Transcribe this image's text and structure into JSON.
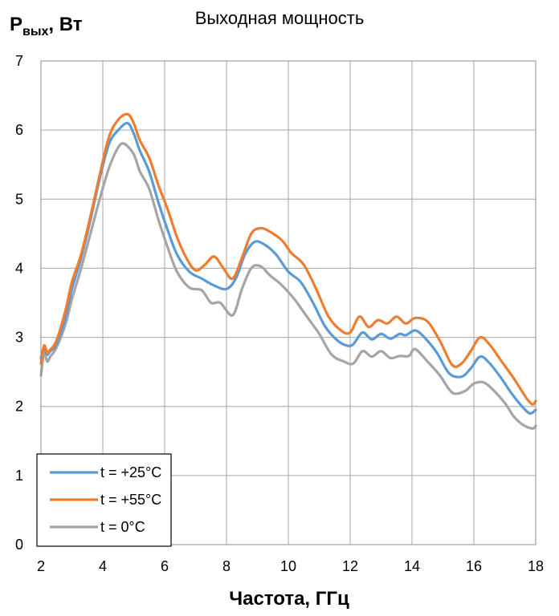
{
  "chart_data": {
    "type": "line",
    "title": "Выходная мощность",
    "ylabel": "P",
    "ylabel_sub": "вых",
    "ylabel_unit": ", Вт",
    "xlabel": "Частота, ГГц",
    "xlim": [
      2,
      18
    ],
    "ylim": [
      0,
      7
    ],
    "x_ticks": [
      2,
      4,
      6,
      8,
      10,
      12,
      14,
      16,
      18
    ],
    "y_ticks": [
      0,
      1,
      2,
      3,
      4,
      5,
      6,
      7
    ],
    "grid": true,
    "legend_position": "bottom-left",
    "series": [
      {
        "name": "t = +25°C",
        "color": "#5b9bd5",
        "points": [
          [
            2.0,
            2.7
          ],
          [
            2.1,
            2.85
          ],
          [
            2.2,
            2.75
          ],
          [
            2.3,
            2.8
          ],
          [
            2.5,
            2.9
          ],
          [
            2.8,
            3.3
          ],
          [
            3.0,
            3.7
          ],
          [
            3.3,
            4.15
          ],
          [
            3.6,
            4.7
          ],
          [
            3.9,
            5.3
          ],
          [
            4.2,
            5.8
          ],
          [
            4.5,
            6.0
          ],
          [
            4.8,
            6.1
          ],
          [
            5.0,
            5.95
          ],
          [
            5.2,
            5.7
          ],
          [
            5.5,
            5.4
          ],
          [
            5.8,
            4.95
          ],
          [
            6.1,
            4.55
          ],
          [
            6.4,
            4.2
          ],
          [
            6.8,
            3.95
          ],
          [
            7.2,
            3.85
          ],
          [
            7.6,
            3.75
          ],
          [
            8.0,
            3.7
          ],
          [
            8.3,
            3.85
          ],
          [
            8.6,
            4.2
          ],
          [
            8.9,
            4.38
          ],
          [
            9.2,
            4.35
          ],
          [
            9.6,
            4.2
          ],
          [
            10.0,
            3.95
          ],
          [
            10.4,
            3.8
          ],
          [
            10.8,
            3.5
          ],
          [
            11.2,
            3.15
          ],
          [
            11.6,
            2.95
          ],
          [
            11.9,
            2.88
          ],
          [
            12.1,
            2.9
          ],
          [
            12.4,
            3.07
          ],
          [
            12.7,
            2.97
          ],
          [
            13.0,
            3.05
          ],
          [
            13.3,
            2.98
          ],
          [
            13.6,
            3.05
          ],
          [
            13.8,
            3.03
          ],
          [
            14.1,
            3.1
          ],
          [
            14.4,
            3.0
          ],
          [
            14.8,
            2.78
          ],
          [
            15.2,
            2.48
          ],
          [
            15.6,
            2.43
          ],
          [
            15.9,
            2.55
          ],
          [
            16.2,
            2.72
          ],
          [
            16.5,
            2.63
          ],
          [
            16.9,
            2.4
          ],
          [
            17.2,
            2.2
          ],
          [
            17.5,
            2.03
          ],
          [
            17.8,
            1.9
          ],
          [
            18.0,
            1.95
          ]
        ]
      },
      {
        "name": "t = +55°C",
        "color": "#ed7d31",
        "points": [
          [
            2.0,
            2.62
          ],
          [
            2.1,
            2.88
          ],
          [
            2.2,
            2.78
          ],
          [
            2.3,
            2.82
          ],
          [
            2.5,
            2.95
          ],
          [
            2.8,
            3.4
          ],
          [
            3.0,
            3.8
          ],
          [
            3.3,
            4.2
          ],
          [
            3.6,
            4.75
          ],
          [
            3.9,
            5.35
          ],
          [
            4.2,
            5.9
          ],
          [
            4.5,
            6.15
          ],
          [
            4.8,
            6.23
          ],
          [
            5.0,
            6.1
          ],
          [
            5.2,
            5.85
          ],
          [
            5.5,
            5.6
          ],
          [
            5.8,
            5.2
          ],
          [
            6.1,
            4.85
          ],
          [
            6.4,
            4.45
          ],
          [
            6.7,
            4.15
          ],
          [
            7.0,
            3.97
          ],
          [
            7.3,
            4.05
          ],
          [
            7.6,
            4.17
          ],
          [
            7.9,
            4.0
          ],
          [
            8.2,
            3.85
          ],
          [
            8.5,
            4.15
          ],
          [
            8.8,
            4.5
          ],
          [
            9.1,
            4.58
          ],
          [
            9.4,
            4.53
          ],
          [
            9.8,
            4.4
          ],
          [
            10.1,
            4.22
          ],
          [
            10.5,
            4.05
          ],
          [
            10.9,
            3.7
          ],
          [
            11.3,
            3.3
          ],
          [
            11.7,
            3.1
          ],
          [
            12.0,
            3.07
          ],
          [
            12.3,
            3.3
          ],
          [
            12.6,
            3.15
          ],
          [
            12.9,
            3.25
          ],
          [
            13.2,
            3.2
          ],
          [
            13.5,
            3.3
          ],
          [
            13.8,
            3.2
          ],
          [
            14.1,
            3.28
          ],
          [
            14.5,
            3.23
          ],
          [
            14.9,
            2.95
          ],
          [
            15.3,
            2.6
          ],
          [
            15.6,
            2.62
          ],
          [
            15.9,
            2.8
          ],
          [
            16.2,
            3.0
          ],
          [
            16.5,
            2.9
          ],
          [
            16.9,
            2.65
          ],
          [
            17.3,
            2.4
          ],
          [
            17.7,
            2.12
          ],
          [
            17.9,
            2.03
          ],
          [
            18.0,
            2.08
          ]
        ]
      },
      {
        "name": "t = 0°C",
        "color": "#a5a5a5",
        "points": [
          [
            2.0,
            2.45
          ],
          [
            2.1,
            2.78
          ],
          [
            2.2,
            2.65
          ],
          [
            2.3,
            2.72
          ],
          [
            2.5,
            2.85
          ],
          [
            2.8,
            3.2
          ],
          [
            3.0,
            3.55
          ],
          [
            3.3,
            4.0
          ],
          [
            3.6,
            4.5
          ],
          [
            3.9,
            5.0
          ],
          [
            4.2,
            5.45
          ],
          [
            4.5,
            5.75
          ],
          [
            4.7,
            5.8
          ],
          [
            5.0,
            5.65
          ],
          [
            5.2,
            5.4
          ],
          [
            5.5,
            5.15
          ],
          [
            5.8,
            4.7
          ],
          [
            6.1,
            4.3
          ],
          [
            6.4,
            3.95
          ],
          [
            6.8,
            3.72
          ],
          [
            7.2,
            3.68
          ],
          [
            7.5,
            3.5
          ],
          [
            7.8,
            3.5
          ],
          [
            8.2,
            3.32
          ],
          [
            8.5,
            3.7
          ],
          [
            8.8,
            4.0
          ],
          [
            9.1,
            4.03
          ],
          [
            9.4,
            3.9
          ],
          [
            9.8,
            3.75
          ],
          [
            10.2,
            3.55
          ],
          [
            10.6,
            3.3
          ],
          [
            11.0,
            3.05
          ],
          [
            11.4,
            2.75
          ],
          [
            11.8,
            2.65
          ],
          [
            12.1,
            2.62
          ],
          [
            12.4,
            2.8
          ],
          [
            12.7,
            2.72
          ],
          [
            13.0,
            2.8
          ],
          [
            13.3,
            2.7
          ],
          [
            13.6,
            2.73
          ],
          [
            13.9,
            2.73
          ],
          [
            14.1,
            2.83
          ],
          [
            14.5,
            2.65
          ],
          [
            14.9,
            2.45
          ],
          [
            15.3,
            2.2
          ],
          [
            15.7,
            2.22
          ],
          [
            16.0,
            2.33
          ],
          [
            16.3,
            2.35
          ],
          [
            16.6,
            2.25
          ],
          [
            17.0,
            2.05
          ],
          [
            17.3,
            1.85
          ],
          [
            17.6,
            1.73
          ],
          [
            17.9,
            1.68
          ],
          [
            18.0,
            1.72
          ]
        ]
      }
    ]
  }
}
